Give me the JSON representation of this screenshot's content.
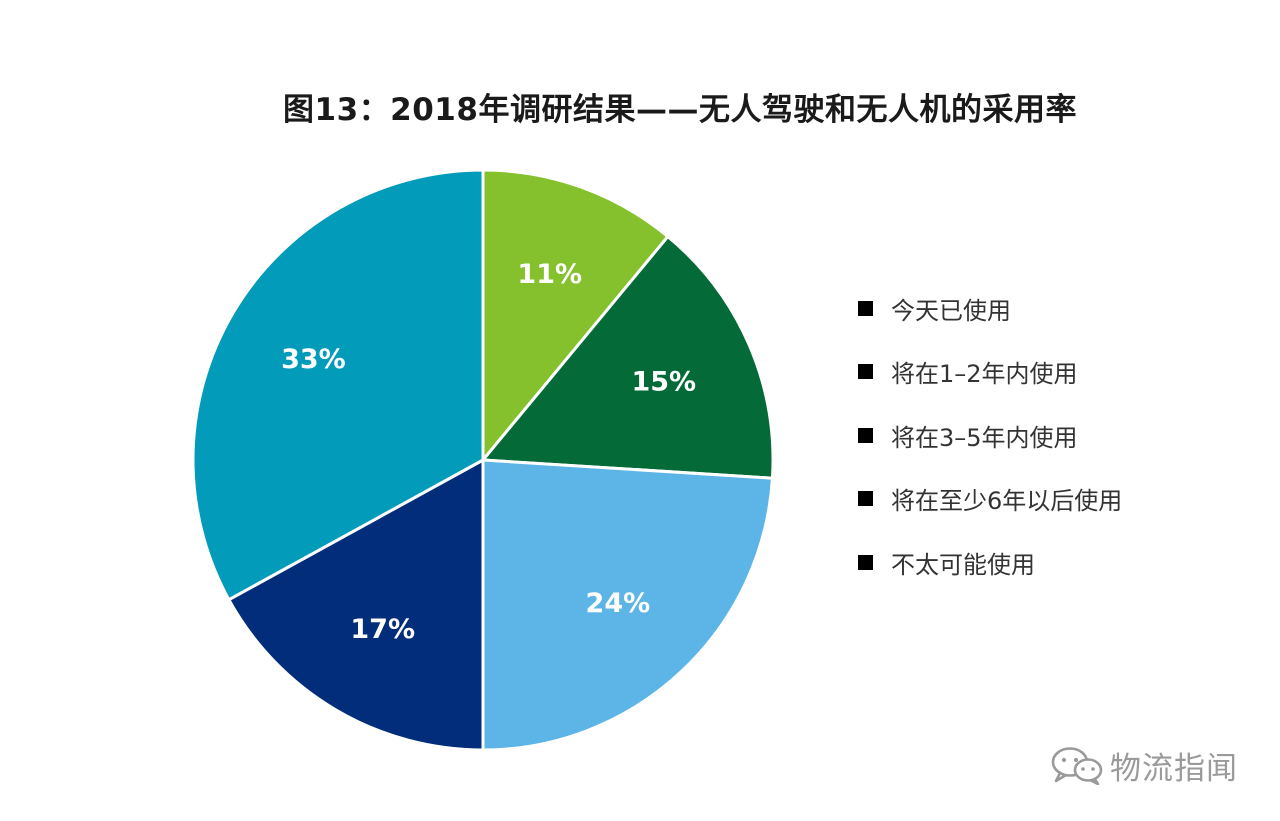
{
  "chart_data": {
    "type": "pie",
    "title": "图13：2018年调研结果——无人驾驶和无人机的采用率",
    "start_angle_deg": 0,
    "direction": "clockwise",
    "legend_position": "right",
    "slices": [
      {
        "label": "今天已使用",
        "value": 11,
        "value_label": "11%",
        "color": "#84c12d"
      },
      {
        "label": "将在1–2年内使用",
        "value": 15,
        "value_label": "15%",
        "color": "#046a38"
      },
      {
        "label": "将在3–5年内使用",
        "value": 24,
        "value_label": "24%",
        "color": "#5cb5e6"
      },
      {
        "label": "将在至少6年以后使用",
        "value": 17,
        "value_label": "17%",
        "color": "#012d7a"
      },
      {
        "label": "不太可能使用",
        "value": 33,
        "value_label": "33%",
        "color": "#029bba"
      }
    ]
  },
  "watermark": {
    "text": "物流指闻",
    "icon": "wechat-icon"
  }
}
